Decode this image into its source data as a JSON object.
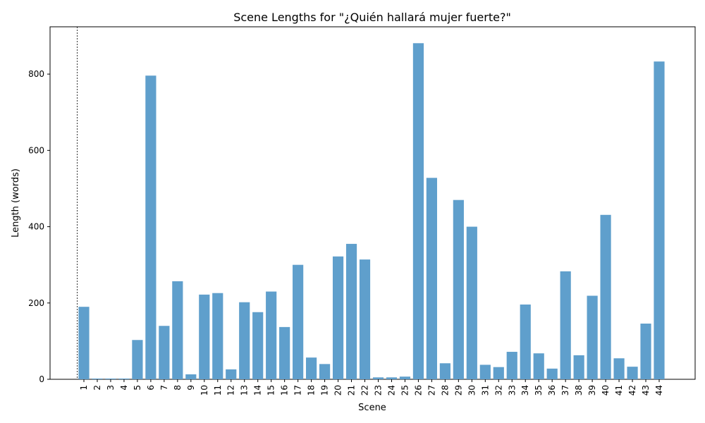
{
  "chart_data": {
    "type": "bar",
    "title": "Scene Lengths for \"¿Quién hallará mujer fuerte?\"",
    "xlabel": "Scene",
    "ylabel": "Length (words)",
    "categories": [
      "1",
      "2",
      "3",
      "4",
      "5",
      "6",
      "7",
      "8",
      "9",
      "10",
      "11",
      "12",
      "13",
      "14",
      "15",
      "16",
      "17",
      "18",
      "19",
      "20",
      "21",
      "22",
      "23",
      "24",
      "25",
      "26",
      "27",
      "28",
      "29",
      "30",
      "31",
      "32",
      "33",
      "34",
      "35",
      "36",
      "37",
      "38",
      "39",
      "40",
      "41",
      "42",
      "43",
      "44"
    ],
    "values": [
      190,
      2,
      2,
      2,
      103,
      796,
      140,
      257,
      13,
      222,
      226,
      26,
      202,
      176,
      230,
      137,
      300,
      57,
      40,
      322,
      355,
      314,
      5,
      5,
      7,
      881,
      528,
      42,
      470,
      400,
      38,
      32,
      72,
      196,
      68,
      28,
      283,
      63,
      219,
      431,
      55,
      33,
      146,
      833
    ],
    "ylim": [
      0,
      924
    ],
    "yticks": [
      0,
      200,
      400,
      600,
      800
    ],
    "bar_color": "#5f9fcc",
    "marker_line_at_category": "1",
    "grid": false
  }
}
